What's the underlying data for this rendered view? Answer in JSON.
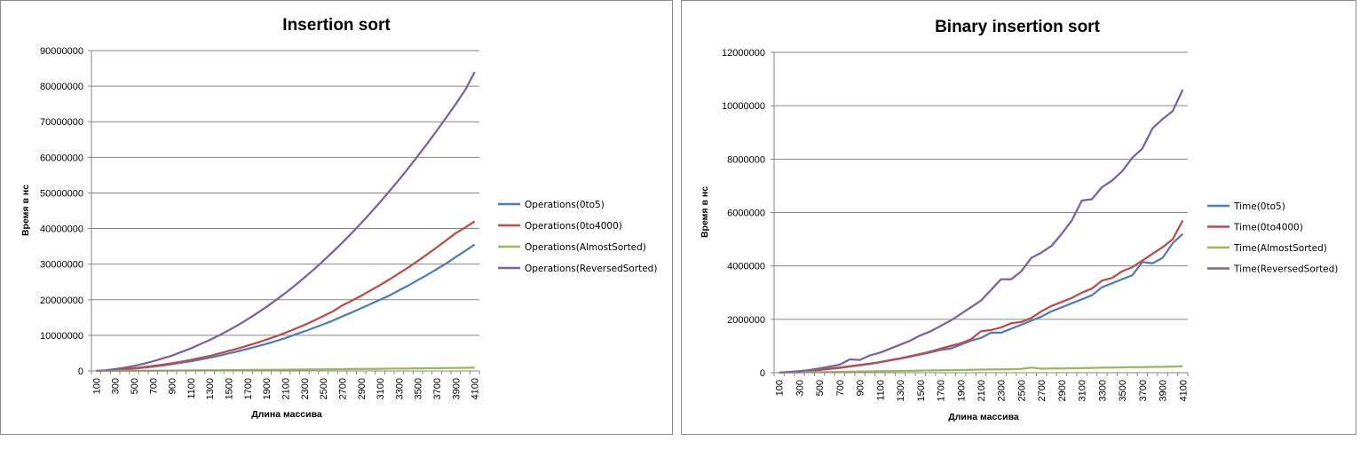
{
  "colors": {
    "Operations(0to5)": "#4a7ebb",
    "Operations(0to4000)": "#be4b48",
    "Operations(AlmostSorted)": "#98b954",
    "Operations(ReversedSorted)": "#7d60a0",
    "Time(0to5)": "#4a7ebb",
    "Time(0to4000)": "#be4b48",
    "Time(AlmostSorted)": "#98b954",
    "Time(ReversedSorted)": "#7d60a0",
    "gridline": "#868686",
    "axis": "#868686"
  },
  "chart_data": [
    {
      "type": "line",
      "title": "Insertion sort",
      "xlabel": "Длина массива",
      "ylabel": "Время в нс",
      "ylim": [
        0,
        90000000
      ],
      "yticks": [
        "0",
        "10000000",
        "20000000",
        "30000000",
        "40000000",
        "50000000",
        "60000000",
        "70000000",
        "80000000",
        "90000000"
      ],
      "xtick_labels": [
        "100",
        "300",
        "500",
        "700",
        "900",
        "1100",
        "1300",
        "1500",
        "1700",
        "1900",
        "2100",
        "2300",
        "2500",
        "2700",
        "2900",
        "3100",
        "3300",
        "3500",
        "3700",
        "3900",
        "4100"
      ],
      "legend_position": "right",
      "grid": true,
      "x": [
        100,
        200,
        300,
        400,
        500,
        600,
        700,
        800,
        900,
        1000,
        1100,
        1200,
        1300,
        1400,
        1500,
        1600,
        1700,
        1800,
        1900,
        2000,
        2100,
        2200,
        2300,
        2400,
        2500,
        2600,
        2700,
        2800,
        2900,
        3000,
        3100,
        3200,
        3300,
        3400,
        3500,
        3600,
        3700,
        3800,
        3900,
        4000,
        4100
      ],
      "series": [
        {
          "name": "Operations(0to5)",
          "values": [
            0,
            80000,
            250000,
            400000,
            650000,
            900000,
            1200000,
            1500000,
            1900000,
            2300000,
            2700000,
            3200000,
            3700000,
            4300000,
            4900000,
            5500000,
            6200000,
            6900000,
            7600000,
            8400000,
            9200000,
            10200000,
            11100000,
            12100000,
            13100000,
            14100000,
            15300000,
            16400000,
            17600000,
            18800000,
            20000000,
            21200000,
            22600000,
            24000000,
            25500000,
            27000000,
            28600000,
            30200000,
            32000000,
            33700000,
            35500000
          ]
        },
        {
          "name": "Operations(0to4000)",
          "values": [
            0,
            100000,
            300000,
            500000,
            750000,
            1050000,
            1400000,
            1750000,
            2150000,
            2600000,
            3100000,
            3650000,
            4200000,
            4900000,
            5600000,
            6300000,
            7100000,
            7900000,
            8800000,
            9700000,
            10700000,
            11800000,
            12900000,
            14100000,
            15400000,
            16700000,
            18400000,
            19700000,
            21100000,
            22600000,
            24100000,
            25700000,
            27400000,
            29100000,
            30900000,
            32800000,
            34700000,
            36700000,
            38700000,
            40300000,
            42000000
          ]
        },
        {
          "name": "Operations(AlmostSorted)",
          "values": [
            0,
            10000,
            20000,
            30000,
            50000,
            60000,
            80000,
            100000,
            110000,
            130000,
            150000,
            170000,
            190000,
            210000,
            230000,
            250000,
            270000,
            290000,
            310000,
            330000,
            350000,
            380000,
            400000,
            420000,
            450000,
            470000,
            500000,
            530000,
            550000,
            580000,
            610000,
            640000,
            660000,
            690000,
            720000,
            750000,
            780000,
            810000,
            840000,
            870000,
            900000
          ]
        },
        {
          "name": "Operations(ReversedSorted)",
          "values": [
            0,
            200000,
            500000,
            900000,
            1400000,
            2000000,
            2700000,
            3500000,
            4300000,
            5300000,
            6300000,
            7500000,
            8700000,
            10000000,
            11400000,
            12900000,
            14500000,
            16200000,
            18000000,
            19900000,
            21900000,
            24000000,
            26200000,
            28500000,
            30900000,
            33400000,
            36000000,
            38700000,
            41500000,
            44400000,
            47400000,
            50500000,
            53700000,
            57000000,
            60400000,
            63900000,
            67500000,
            71200000,
            75000000,
            78900000,
            84000000
          ]
        }
      ]
    },
    {
      "type": "line",
      "title": "Binary insertion sort",
      "xlabel": "Длина массива",
      "ylabel": "Время в нс",
      "ylim": [
        0,
        12000000
      ],
      "yticks": [
        "0",
        "2000000",
        "4000000",
        "6000000",
        "8000000",
        "10000000",
        "12000000"
      ],
      "xtick_labels": [
        "100",
        "300",
        "500",
        "700",
        "900",
        "1100",
        "1300",
        "1500",
        "1700",
        "1900",
        "2100",
        "2300",
        "2500",
        "2700",
        "2900",
        "3100",
        "3300",
        "3500",
        "3700",
        "3900",
        "4100"
      ],
      "legend_position": "right",
      "grid": true,
      "x": [
        100,
        200,
        300,
        400,
        500,
        600,
        700,
        800,
        900,
        1000,
        1100,
        1200,
        1300,
        1400,
        1500,
        1600,
        1700,
        1800,
        1900,
        2000,
        2100,
        2200,
        2300,
        2400,
        2500,
        2600,
        2700,
        2800,
        2900,
        3000,
        3100,
        3200,
        3300,
        3400,
        3500,
        3600,
        3700,
        3800,
        3900,
        4000,
        4100
      ],
      "series": [
        {
          "name": "Time(0to5)",
          "values": [
            0,
            20000,
            40000,
            70000,
            100000,
            140000,
            180000,
            230000,
            280000,
            330000,
            390000,
            460000,
            530000,
            600000,
            680000,
            760000,
            850000,
            900000,
            1050000,
            1200000,
            1300000,
            1500000,
            1500000,
            1650000,
            1800000,
            1950000,
            2100000,
            2300000,
            2450000,
            2600000,
            2750000,
            2900000,
            3200000,
            3350000,
            3500000,
            3650000,
            4150000,
            4100000,
            4300000,
            4850000,
            5200000
          ]
        },
        {
          "name": "Time(0to4000)",
          "values": [
            0,
            25000,
            50000,
            80000,
            110000,
            150000,
            190000,
            240000,
            290000,
            340000,
            400000,
            470000,
            540000,
            620000,
            700000,
            790000,
            900000,
            1000000,
            1100000,
            1250000,
            1550000,
            1600000,
            1700000,
            1850000,
            1900000,
            2050000,
            2300000,
            2500000,
            2650000,
            2800000,
            3000000,
            3150000,
            3450000,
            3550000,
            3800000,
            3950000,
            4200000,
            4450000,
            4700000,
            5000000,
            5700000
          ]
        },
        {
          "name": "Time(AlmostSorted)",
          "values": [
            0,
            5000,
            10000,
            15000,
            20000,
            25000,
            30000,
            40000,
            45000,
            50000,
            55000,
            60000,
            65000,
            70000,
            80000,
            85000,
            90000,
            95000,
            100000,
            110000,
            115000,
            120000,
            125000,
            130000,
            140000,
            190000,
            150000,
            155000,
            160000,
            165000,
            170000,
            180000,
            185000,
            190000,
            200000,
            205000,
            210000,
            215000,
            220000,
            230000,
            240000
          ]
        },
        {
          "name": "Time(ReversedSorted)",
          "values": [
            0,
            30000,
            60000,
            100000,
            160000,
            230000,
            300000,
            500000,
            480000,
            650000,
            750000,
            900000,
            1050000,
            1200000,
            1400000,
            1550000,
            1750000,
            1950000,
            2200000,
            2450000,
            2700000,
            3100000,
            3500000,
            3500000,
            3800000,
            4300000,
            4500000,
            4750000,
            5200000,
            5700000,
            6450000,
            6500000,
            6950000,
            7200000,
            7550000,
            8050000,
            8400000,
            9150000,
            9500000,
            9800000,
            10600000
          ]
        }
      ]
    }
  ]
}
